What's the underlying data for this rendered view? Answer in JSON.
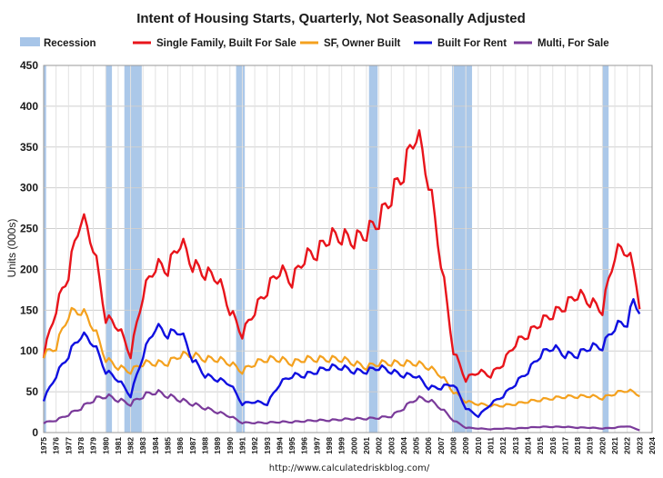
{
  "chart_data": {
    "type": "line",
    "title": "Intent of Housing Starts, Quarterly, Not Seasonally Adjusted",
    "ylabel": "Units (000s)",
    "xlabel": "",
    "source": "http://www.calculatedriskblog.com/",
    "ylim": [
      0,
      450
    ],
    "xlim": [
      1975,
      2024
    ],
    "y_ticks": [
      0,
      50,
      100,
      150,
      200,
      250,
      300,
      350,
      400,
      450
    ],
    "x_ticks": [
      1975,
      1976,
      1977,
      1978,
      1979,
      1980,
      1981,
      1982,
      1983,
      1984,
      1985,
      1986,
      1987,
      1988,
      1989,
      1990,
      1991,
      1992,
      1993,
      1994,
      1995,
      1996,
      1997,
      1998,
      1999,
      2000,
      2001,
      2002,
      2003,
      2004,
      2005,
      2006,
      2007,
      2008,
      2009,
      2010,
      2011,
      2012,
      2013,
      2014,
      2015,
      2016,
      2017,
      2018,
      2019,
      2020,
      2021,
      2022,
      2023,
      2024
    ],
    "grid": true,
    "legend_position": "top",
    "recession_label": "Recession",
    "recession_color": "#a7c5e8",
    "recessions": [
      [
        1975.0,
        1975.2
      ],
      [
        1980.0,
        1980.5
      ],
      [
        1981.5,
        1982.9
      ],
      [
        1990.5,
        1991.2
      ],
      [
        2001.2,
        2001.9
      ],
      [
        2007.9,
        2009.5
      ],
      [
        2020.0,
        2020.5
      ]
    ],
    "series": [
      {
        "name": "Single Family, Built For Sale",
        "color": "#e8141b",
        "width": 2.4,
        "anchors": [
          [
            1975,
            95
          ],
          [
            1976,
            152
          ],
          [
            1977,
            195
          ],
          [
            1978,
            265
          ],
          [
            1979,
            230
          ],
          [
            1980,
            140
          ],
          [
            1981,
            130
          ],
          [
            1982,
            95
          ],
          [
            1983,
            170
          ],
          [
            1984,
            205
          ],
          [
            1985,
            200
          ],
          [
            1986,
            235
          ],
          [
            1987,
            205
          ],
          [
            1988,
            195
          ],
          [
            1989,
            190
          ],
          [
            1990,
            150
          ],
          [
            1991,
            120
          ],
          [
            1992,
            150
          ],
          [
            1993,
            175
          ],
          [
            1994,
            200
          ],
          [
            1995,
            185
          ],
          [
            1996,
            215
          ],
          [
            1997,
            220
          ],
          [
            1998,
            240
          ],
          [
            1999,
            240
          ],
          [
            2000,
            235
          ],
          [
            2001,
            245
          ],
          [
            2002,
            260
          ],
          [
            2003,
            290
          ],
          [
            2004,
            320
          ],
          [
            2005,
            370
          ],
          [
            2006,
            310
          ],
          [
            2007,
            210
          ],
          [
            2008,
            100
          ],
          [
            2009,
            65
          ],
          [
            2010,
            75
          ],
          [
            2011,
            70
          ],
          [
            2012,
            85
          ],
          [
            2013,
            110
          ],
          [
            2014,
            120
          ],
          [
            2015,
            135
          ],
          [
            2016,
            145
          ],
          [
            2017,
            155
          ],
          [
            2018,
            170
          ],
          [
            2019,
            160
          ],
          [
            2020,
            150
          ],
          [
            2021,
            220
          ],
          [
            2022,
            225
          ],
          [
            2022.8,
            180
          ],
          [
            2023.2,
            135
          ]
        ]
      },
      {
        "name": "SF, Owner Built",
        "color": "#f4a11e",
        "width": 2.2,
        "anchors": [
          [
            1975,
            95
          ],
          [
            1976,
            105
          ],
          [
            1977,
            145
          ],
          [
            1978,
            150
          ],
          [
            1979,
            130
          ],
          [
            1980,
            90
          ],
          [
            1981,
            80
          ],
          [
            1982,
            75
          ],
          [
            1983,
            85
          ],
          [
            1984,
            85
          ],
          [
            1985,
            85
          ],
          [
            1986,
            95
          ],
          [
            1987,
            95
          ],
          [
            1988,
            90
          ],
          [
            1989,
            90
          ],
          [
            1990,
            85
          ],
          [
            1991,
            75
          ],
          [
            1992,
            85
          ],
          [
            1993,
            90
          ],
          [
            1994,
            90
          ],
          [
            1995,
            85
          ],
          [
            1996,
            90
          ],
          [
            1997,
            90
          ],
          [
            1998,
            90
          ],
          [
            1999,
            90
          ],
          [
            2000,
            85
          ],
          [
            2001,
            80
          ],
          [
            2002,
            85
          ],
          [
            2003,
            85
          ],
          [
            2004,
            85
          ],
          [
            2005,
            85
          ],
          [
            2006,
            80
          ],
          [
            2007,
            70
          ],
          [
            2008,
            50
          ],
          [
            2009,
            38
          ],
          [
            2010,
            35
          ],
          [
            2011,
            33
          ],
          [
            2012,
            33
          ],
          [
            2013,
            35
          ],
          [
            2014,
            38
          ],
          [
            2015,
            40
          ],
          [
            2016,
            42
          ],
          [
            2017,
            44
          ],
          [
            2018,
            44
          ],
          [
            2019,
            45
          ],
          [
            2020,
            42
          ],
          [
            2021,
            48
          ],
          [
            2022,
            52
          ],
          [
            2023.2,
            45
          ]
        ]
      },
      {
        "name": "Built For Rent",
        "color": "#1010e0",
        "width": 2.4,
        "anchors": [
          [
            1975,
            40
          ],
          [
            1976,
            70
          ],
          [
            1977,
            95
          ],
          [
            1978,
            120
          ],
          [
            1979,
            110
          ],
          [
            1980,
            75
          ],
          [
            1981,
            65
          ],
          [
            1982,
            45
          ],
          [
            1983,
            95
          ],
          [
            1984,
            130
          ],
          [
            1985,
            120
          ],
          [
            1986,
            125
          ],
          [
            1987,
            90
          ],
          [
            1988,
            70
          ],
          [
            1989,
            65
          ],
          [
            1990,
            60
          ],
          [
            1991,
            35
          ],
          [
            1992,
            38
          ],
          [
            1993,
            35
          ],
          [
            1994,
            60
          ],
          [
            1995,
            70
          ],
          [
            1996,
            70
          ],
          [
            1997,
            75
          ],
          [
            1998,
            80
          ],
          [
            1999,
            80
          ],
          [
            2000,
            75
          ],
          [
            2001,
            75
          ],
          [
            2002,
            80
          ],
          [
            2003,
            75
          ],
          [
            2004,
            70
          ],
          [
            2005,
            70
          ],
          [
            2006,
            55
          ],
          [
            2007,
            55
          ],
          [
            2008,
            60
          ],
          [
            2009,
            30
          ],
          [
            2010,
            20
          ],
          [
            2011,
            35
          ],
          [
            2012,
            45
          ],
          [
            2013,
            60
          ],
          [
            2014,
            75
          ],
          [
            2015,
            95
          ],
          [
            2016,
            105
          ],
          [
            2017,
            95
          ],
          [
            2018,
            95
          ],
          [
            2019,
            105
          ],
          [
            2020,
            105
          ],
          [
            2021,
            130
          ],
          [
            2022,
            135
          ],
          [
            2022.5,
            160
          ],
          [
            2023.2,
            148
          ]
        ]
      },
      {
        "name": "Multi, For Sale",
        "color": "#7a3a9a",
        "width": 2.2,
        "anchors": [
          [
            1975,
            12
          ],
          [
            1976,
            15
          ],
          [
            1977,
            22
          ],
          [
            1978,
            30
          ],
          [
            1979,
            40
          ],
          [
            1980,
            45
          ],
          [
            1981,
            40
          ],
          [
            1982,
            35
          ],
          [
            1983,
            45
          ],
          [
            1984,
            50
          ],
          [
            1985,
            45
          ],
          [
            1986,
            40
          ],
          [
            1987,
            35
          ],
          [
            1988,
            30
          ],
          [
            1989,
            25
          ],
          [
            1990,
            20
          ],
          [
            1991,
            12
          ],
          [
            1992,
            12
          ],
          [
            1993,
            12
          ],
          [
            1994,
            13
          ],
          [
            1995,
            13
          ],
          [
            1996,
            14
          ],
          [
            1997,
            15
          ],
          [
            1998,
            15
          ],
          [
            1999,
            16
          ],
          [
            2000,
            17
          ],
          [
            2001,
            17
          ],
          [
            2002,
            18
          ],
          [
            2003,
            20
          ],
          [
            2004,
            30
          ],
          [
            2005,
            42
          ],
          [
            2006,
            40
          ],
          [
            2007,
            30
          ],
          [
            2008,
            15
          ],
          [
            2009,
            6
          ],
          [
            2010,
            5
          ],
          [
            2011,
            4
          ],
          [
            2012,
            5
          ],
          [
            2013,
            5
          ],
          [
            2014,
            6
          ],
          [
            2015,
            7
          ],
          [
            2016,
            7
          ],
          [
            2017,
            7
          ],
          [
            2018,
            6
          ],
          [
            2019,
            6
          ],
          [
            2020,
            5
          ],
          [
            2021,
            6
          ],
          [
            2022,
            8
          ],
          [
            2023.2,
            2
          ]
        ]
      }
    ]
  }
}
